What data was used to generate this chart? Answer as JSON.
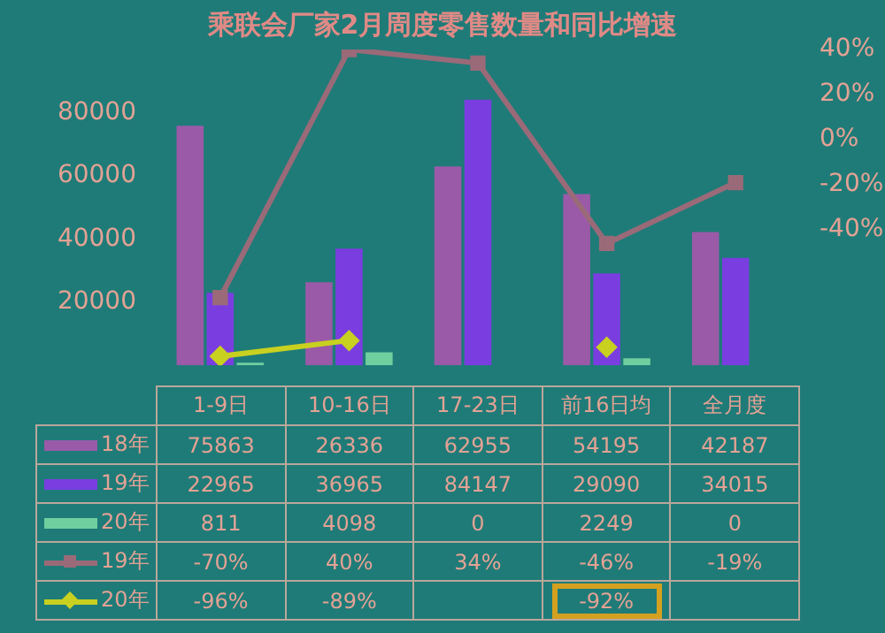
{
  "chart_data": {
    "type": "bar",
    "title": "乘联会厂家2月周度零售数量和同比增速",
    "categories": [
      "1-9日",
      "10-16日",
      "17-23日",
      "前16日均",
      "全月度"
    ],
    "series": [
      {
        "name": "18年",
        "color": "#9a5aa8",
        "values": [
          75863,
          26336,
          62955,
          54195,
          42187
        ],
        "value_labels": [
          "75863",
          "26336",
          "62955",
          "54195",
          "42187"
        ]
      },
      {
        "name": "19年",
        "color": "#7a3ee0",
        "values": [
          22965,
          36965,
          84147,
          29090,
          34015
        ],
        "value_labels": [
          "22965",
          "36965",
          "84147",
          "29090",
          "34015"
        ]
      },
      {
        "name": "20年",
        "color": "#6fcf9f",
        "values": [
          811,
          4098,
          0,
          2249,
          0
        ],
        "value_labels": [
          "811",
          "4098",
          "0",
          "2249",
          "0"
        ]
      },
      {
        "name": "19年",
        "type": "line",
        "axis": "y2",
        "marker": "square",
        "color": "#9a6a78",
        "values": [
          -70,
          40,
          34,
          -46,
          -19
        ],
        "value_labels": [
          "-70%",
          "40%",
          "34%",
          "-46%",
          "-19%"
        ]
      },
      {
        "name": "20年",
        "type": "line",
        "axis": "y2",
        "marker": "diamond",
        "color": "#c8d020",
        "values": [
          -96,
          -89,
          null,
          -92,
          null
        ],
        "value_labels": [
          "-96%",
          "-89%",
          null,
          "-92%",
          null
        ]
      }
    ],
    "ylim": [
      0,
      100000
    ],
    "yticks": [
      20000,
      40000,
      60000,
      80000
    ],
    "y2lim": [
      -100,
      40
    ],
    "y2ticks": [
      {
        "value": -40,
        "label": "-40%"
      },
      {
        "value": -20,
        "label": "-20%"
      },
      {
        "value": 0,
        "label": "0%"
      },
      {
        "value": 20,
        "label": "20%"
      },
      {
        "value": 40,
        "label": "40%"
      }
    ],
    "legend": "bottom"
  }
}
